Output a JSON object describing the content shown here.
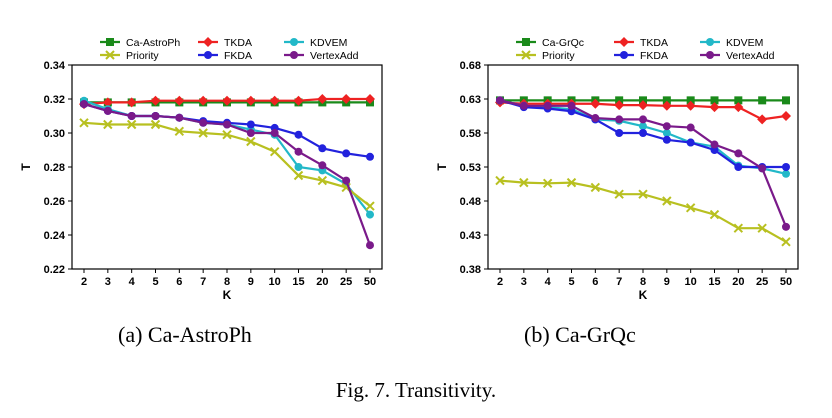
{
  "figure_caption": "Fig. 7.   Transitivity.",
  "chart_data": [
    {
      "type": "line",
      "subcaption": "(a)  Ca-AstroPh",
      "xlabel": "K",
      "ylabel": "T",
      "categories": [
        "2",
        "3",
        "4",
        "5",
        "6",
        "7",
        "8",
        "9",
        "10",
        "15",
        "20",
        "25",
        "50"
      ],
      "ylim": [
        0.22,
        0.34
      ],
      "yticks": [
        "0.22",
        "0.24",
        "0.26",
        "0.28",
        "0.30",
        "0.32",
        "0.34"
      ],
      "grid": false,
      "legend_placement": "top",
      "series": [
        {
          "name": "Ca-AstroPh",
          "color": "#1a8a1a",
          "marker": "square",
          "values": [
            0.318,
            0.318,
            0.318,
            0.318,
            0.318,
            0.318,
            0.318,
            0.318,
            0.318,
            0.318,
            0.318,
            0.318,
            0.318
          ]
        },
        {
          "name": "TKDA",
          "color": "#ee2222",
          "marker": "diamond",
          "values": [
            0.317,
            0.318,
            0.318,
            0.319,
            0.319,
            0.319,
            0.319,
            0.319,
            0.319,
            0.319,
            0.32,
            0.32,
            0.32
          ]
        },
        {
          "name": "KDVEM",
          "color": "#22b8c8",
          "marker": "circle",
          "values": [
            0.319,
            0.314,
            0.31,
            0.31,
            0.309,
            0.306,
            0.305,
            0.302,
            0.299,
            0.28,
            0.278,
            0.27,
            0.252
          ]
        },
        {
          "name": "Priority",
          "color": "#b8c020",
          "marker": "x",
          "values": [
            0.306,
            0.305,
            0.305,
            0.305,
            0.301,
            0.3,
            0.299,
            0.295,
            0.289,
            0.275,
            0.272,
            0.268,
            0.257
          ]
        },
        {
          "name": "FKDA",
          "color": "#2222dd",
          "marker": "circle",
          "values": [
            0.317,
            0.313,
            0.31,
            0.31,
            0.309,
            0.307,
            0.306,
            0.305,
            0.303,
            0.299,
            0.291,
            0.288,
            0.286
          ]
        },
        {
          "name": "VertexAdd",
          "color": "#7a1a8a",
          "marker": "circle",
          "values": [
            0.317,
            0.313,
            0.31,
            0.31,
            0.309,
            0.306,
            0.305,
            0.3,
            0.3,
            0.289,
            0.281,
            0.272,
            0.234
          ]
        }
      ]
    },
    {
      "type": "line",
      "subcaption": "(b)  Ca-GrQc",
      "xlabel": "K",
      "ylabel": "T",
      "categories": [
        "2",
        "3",
        "4",
        "5",
        "6",
        "7",
        "8",
        "9",
        "10",
        "15",
        "20",
        "25",
        "50"
      ],
      "ylim": [
        0.38,
        0.68
      ],
      "yticks": [
        "0.38",
        "0.43",
        "0.48",
        "0.53",
        "0.58",
        "0.63",
        "0.68"
      ],
      "grid": false,
      "legend_placement": "top",
      "series": [
        {
          "name": "Ca-GrQc",
          "color": "#1a8a1a",
          "marker": "square",
          "values": [
            0.628,
            0.628,
            0.628,
            0.628,
            0.628,
            0.628,
            0.628,
            0.628,
            0.628,
            0.628,
            0.628,
            0.628,
            0.628
          ]
        },
        {
          "name": "TKDA",
          "color": "#ee2222",
          "marker": "diamond",
          "values": [
            0.625,
            0.623,
            0.623,
            0.623,
            0.623,
            0.621,
            0.621,
            0.62,
            0.62,
            0.618,
            0.618,
            0.6,
            0.605
          ]
        },
        {
          "name": "KDVEM",
          "color": "#22b8c8",
          "marker": "circle",
          "values": [
            0.628,
            0.62,
            0.618,
            0.615,
            0.6,
            0.598,
            0.59,
            0.58,
            0.566,
            0.56,
            0.532,
            0.528,
            0.52
          ]
        },
        {
          "name": "Priority",
          "color": "#b8c020",
          "marker": "x",
          "values": [
            0.51,
            0.507,
            0.506,
            0.507,
            0.5,
            0.49,
            0.49,
            0.48,
            0.47,
            0.46,
            0.44,
            0.44,
            0.42
          ]
        },
        {
          "name": "FKDA",
          "color": "#2222dd",
          "marker": "circle",
          "values": [
            0.628,
            0.618,
            0.616,
            0.612,
            0.6,
            0.58,
            0.58,
            0.57,
            0.566,
            0.555,
            0.53,
            0.53,
            0.53
          ]
        },
        {
          "name": "VertexAdd",
          "color": "#7a1a8a",
          "marker": "circle",
          "values": [
            0.628,
            0.62,
            0.62,
            0.62,
            0.602,
            0.6,
            0.6,
            0.59,
            0.588,
            0.563,
            0.55,
            0.528,
            0.442
          ]
        }
      ]
    }
  ]
}
